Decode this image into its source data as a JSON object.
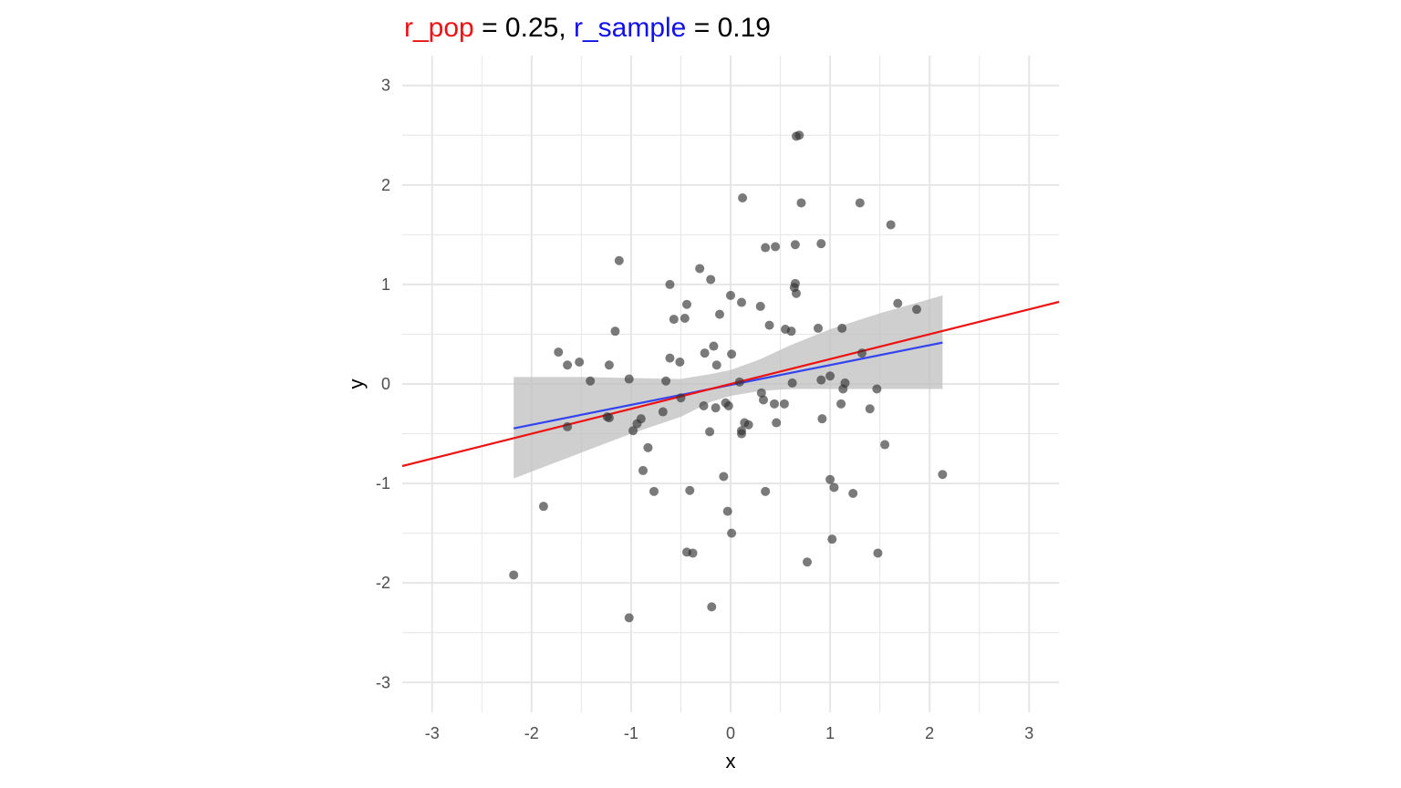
{
  "chart_data": {
    "type": "scatter",
    "title_parts": [
      {
        "text": "r_pop",
        "color": "#ee1111"
      },
      {
        "text": " = 0.25, ",
        "color": "#000000"
      },
      {
        "text": "r_sample",
        "color": "#1111ee"
      },
      {
        "text": " = 0.19",
        "color": "#000000"
      }
    ],
    "xlabel": "x",
    "ylabel": "y",
    "xlim": [
      -3.3,
      3.3
    ],
    "ylim": [
      -3.3,
      3.3
    ],
    "x_ticks": [
      -3,
      -2,
      -1,
      0,
      1,
      2,
      3
    ],
    "y_ticks": [
      -3,
      -2,
      -1,
      0,
      1,
      2,
      3
    ],
    "x_tick_labels": [
      "-3",
      "-2",
      "-1",
      "0",
      "1",
      "2",
      "3"
    ],
    "y_tick_labels": [
      "-3",
      "-2",
      "-1",
      "0",
      "1",
      "2",
      "3"
    ],
    "grid": true,
    "colors": {
      "points": "#333333",
      "pop_line": "#ee1111",
      "sample_line": "#3344ee",
      "ribbon": "#bfbfbf",
      "grid": "#e6e6e6"
    },
    "population_line": {
      "slope": 0.25,
      "intercept": 0
    },
    "sample_fit": {
      "x_range": [
        -2.18,
        2.13
      ],
      "slope": 0.2,
      "intercept": -0.01,
      "ribbon": [
        {
          "x": -2.18,
          "lo": -0.95,
          "hi": 0.07
        },
        {
          "x": -1.5,
          "lo": -0.69,
          "hi": 0.07
        },
        {
          "x": -1.0,
          "lo": -0.5,
          "hi": 0.06
        },
        {
          "x": -0.5,
          "lo": -0.33,
          "hi": 0.05
        },
        {
          "x": -0.2,
          "lo": -0.18,
          "hi": 0.1
        },
        {
          "x": 0.0,
          "lo": -0.12,
          "hi": 0.14
        },
        {
          "x": 0.3,
          "lo": -0.07,
          "hi": 0.25
        },
        {
          "x": 0.6,
          "lo": -0.05,
          "hi": 0.39
        },
        {
          "x": 1.0,
          "lo": -0.05,
          "hi": 0.55
        },
        {
          "x": 1.5,
          "lo": -0.05,
          "hi": 0.71
        },
        {
          "x": 2.13,
          "lo": -0.05,
          "hi": 0.89
        }
      ]
    },
    "points": [
      [
        -2.18,
        -1.92
      ],
      [
        -1.88,
        -1.23
      ],
      [
        -1.73,
        0.32
      ],
      [
        -1.64,
        0.19
      ],
      [
        -1.64,
        -0.43
      ],
      [
        -1.52,
        0.22
      ],
      [
        -1.41,
        0.03
      ],
      [
        -1.24,
        -0.33
      ],
      [
        -1.22,
        -0.34
      ],
      [
        -1.22,
        0.19
      ],
      [
        -1.16,
        0.53
      ],
      [
        -1.12,
        1.24
      ],
      [
        -1.02,
        0.05
      ],
      [
        -1.02,
        -2.35
      ],
      [
        -0.98,
        -0.47
      ],
      [
        -0.94,
        -0.4
      ],
      [
        -0.9,
        -0.35
      ],
      [
        -0.88,
        -0.87
      ],
      [
        -0.83,
        -0.64
      ],
      [
        -0.77,
        -1.08
      ],
      [
        -0.68,
        -0.28
      ],
      [
        -0.65,
        0.03
      ],
      [
        -0.61,
        1.0
      ],
      [
        -0.61,
        0.26
      ],
      [
        -0.57,
        0.65
      ],
      [
        -0.51,
        0.22
      ],
      [
        -0.5,
        -0.14
      ],
      [
        -0.46,
        0.66
      ],
      [
        -0.44,
        0.8
      ],
      [
        -0.44,
        -1.69
      ],
      [
        -0.41,
        -1.07
      ],
      [
        -0.38,
        -1.7
      ],
      [
        -0.31,
        1.16
      ],
      [
        -0.27,
        -0.22
      ],
      [
        -0.26,
        0.31
      ],
      [
        -0.21,
        -0.48
      ],
      [
        -0.2,
        1.05
      ],
      [
        -0.19,
        -2.24
      ],
      [
        -0.17,
        0.38
      ],
      [
        -0.15,
        -0.24
      ],
      [
        -0.14,
        0.19
      ],
      [
        -0.11,
        0.7
      ],
      [
        -0.07,
        -0.93
      ],
      [
        -0.05,
        -0.19
      ],
      [
        -0.03,
        -1.28
      ],
      [
        -0.02,
        -0.22
      ],
      [
        0.0,
        0.89
      ],
      [
        0.01,
        0.3
      ],
      [
        0.01,
        -1.5
      ],
      [
        0.09,
        0.02
      ],
      [
        0.11,
        0.82
      ],
      [
        0.11,
        -0.47
      ],
      [
        0.11,
        -0.5
      ],
      [
        0.12,
        1.87
      ],
      [
        0.14,
        -0.39
      ],
      [
        0.18,
        -0.41
      ],
      [
        0.3,
        0.78
      ],
      [
        0.31,
        -0.09
      ],
      [
        0.33,
        -0.16
      ],
      [
        0.35,
        1.37
      ],
      [
        0.35,
        -1.08
      ],
      [
        0.39,
        0.59
      ],
      [
        0.44,
        -0.2
      ],
      [
        0.45,
        1.38
      ],
      [
        0.46,
        -0.39
      ],
      [
        0.54,
        -0.2
      ],
      [
        0.55,
        0.55
      ],
      [
        0.61,
        0.53
      ],
      [
        0.62,
        0.01
      ],
      [
        0.64,
        0.97
      ],
      [
        0.65,
        1.01
      ],
      [
        0.65,
        1.4
      ],
      [
        0.66,
        0.91
      ],
      [
        0.66,
        2.49
      ],
      [
        0.69,
        2.5
      ],
      [
        0.71,
        1.82
      ],
      [
        0.77,
        -1.79
      ],
      [
        0.88,
        0.56
      ],
      [
        0.91,
        0.04
      ],
      [
        0.91,
        1.41
      ],
      [
        0.92,
        -0.35
      ],
      [
        1.0,
        -0.96
      ],
      [
        1.0,
        0.08
      ],
      [
        1.02,
        -1.56
      ],
      [
        1.04,
        -1.04
      ],
      [
        1.11,
        -0.2
      ],
      [
        1.12,
        0.56
      ],
      [
        1.13,
        -0.05
      ],
      [
        1.15,
        0.01
      ],
      [
        1.23,
        -1.1
      ],
      [
        1.3,
        1.82
      ],
      [
        1.32,
        0.31
      ],
      [
        1.4,
        -0.25
      ],
      [
        1.47,
        -0.05
      ],
      [
        1.48,
        -1.7
      ],
      [
        1.55,
        -0.61
      ],
      [
        1.61,
        1.6
      ],
      [
        1.68,
        0.81
      ],
      [
        1.87,
        0.75
      ],
      [
        2.13,
        -0.91
      ]
    ]
  }
}
